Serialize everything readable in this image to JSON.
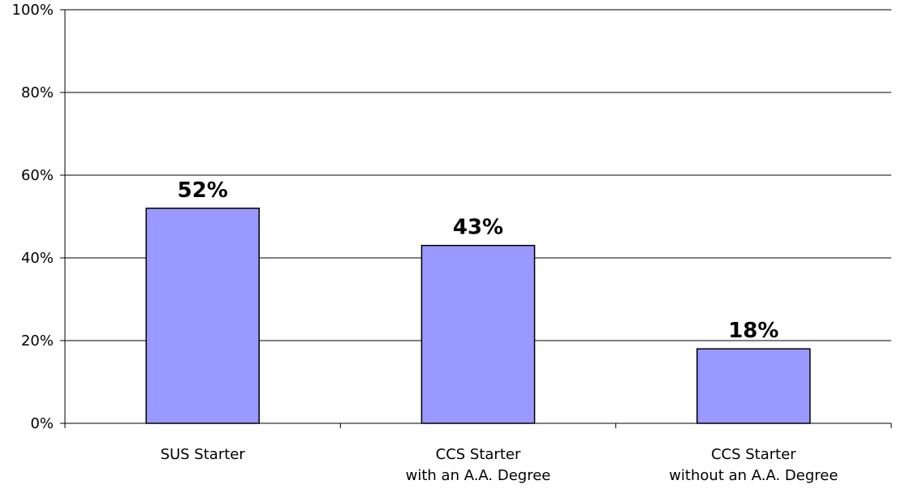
{
  "chart_data": {
    "type": "bar",
    "categories": [
      [
        "SUS Starter"
      ],
      [
        "CCS Starter",
        "with an A.A. Degree"
      ],
      [
        "CCS Starter",
        "without an A.A. Degree"
      ]
    ],
    "values": [
      52,
      43,
      18
    ],
    "data_labels": [
      "52%",
      "43%",
      "18%"
    ],
    "y_ticks": [
      "0%",
      "20%",
      "40%",
      "60%",
      "80%",
      "100%"
    ],
    "ylim": [
      0,
      100
    ],
    "grid": true,
    "bar_color": "#9999ff",
    "bar_stroke": "#000000"
  }
}
